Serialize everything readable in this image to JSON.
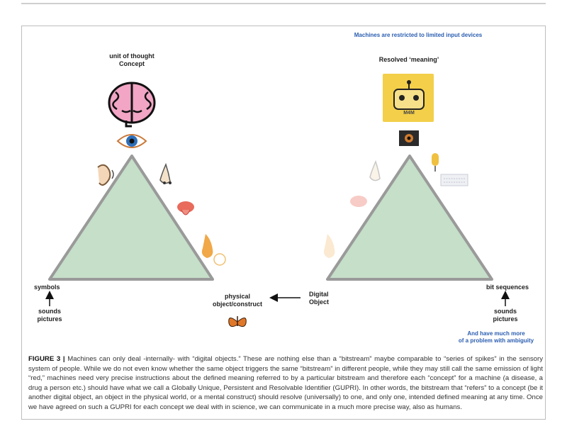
{
  "header": {
    "left_top_1": "unit of thought",
    "left_top_2": "Concept",
    "right_top": "Resolved ‘meaning’",
    "banner": "Machines are restricted to limited input devices",
    "robot_label": "M4M"
  },
  "left": {
    "corner_label": "symbols",
    "inputs_1": "sounds",
    "inputs_2": "pictures"
  },
  "middle": {
    "physical_1": "physical",
    "physical_2": "object/construct",
    "digital_1": "Digital",
    "digital_2": "Object"
  },
  "right": {
    "corner_label": "bit sequences",
    "inputs_1": "sounds",
    "inputs_2": "pictures",
    "note_1": "And have much more",
    "note_2": "of a problem with ambiguity"
  },
  "caption": {
    "label": "FIGURE 3 |",
    "text": "Machines can only deal -internally- with “digital objects.” These are nothing else than a “bitstream” maybe comparable to “series of spikes” in the sensory system of people. While we do not even know whether the same object triggers the same “bitstream” in different people, while they may still call the same emission of light “red,” machines need very precise instructions about the defined meaning referred to by a particular bitstream and therefore each “concept” for a machine (a disease, a drug a person etc.) should have what we call a Globally Unique, Persistent and Resolvable Identifier (GUPRI). In other words, the bitstream that “refers” to a concept (be it another digital object, an object in the physical world, or a mental construct) should resolve (universally) to one, and only one, intended defined meaning at any time. Once we have agreed on such a GUPRI for each concept we deal with in science, we can communicate in a much more precise way, also as humans."
  },
  "colors": {
    "triangle_fill": "#c5dfc8",
    "triangle_stroke": "#9a9a9a",
    "brain": "#f2a5c4",
    "robot_bg": "#f3cf4a",
    "note_blue": "#2a5db0"
  }
}
